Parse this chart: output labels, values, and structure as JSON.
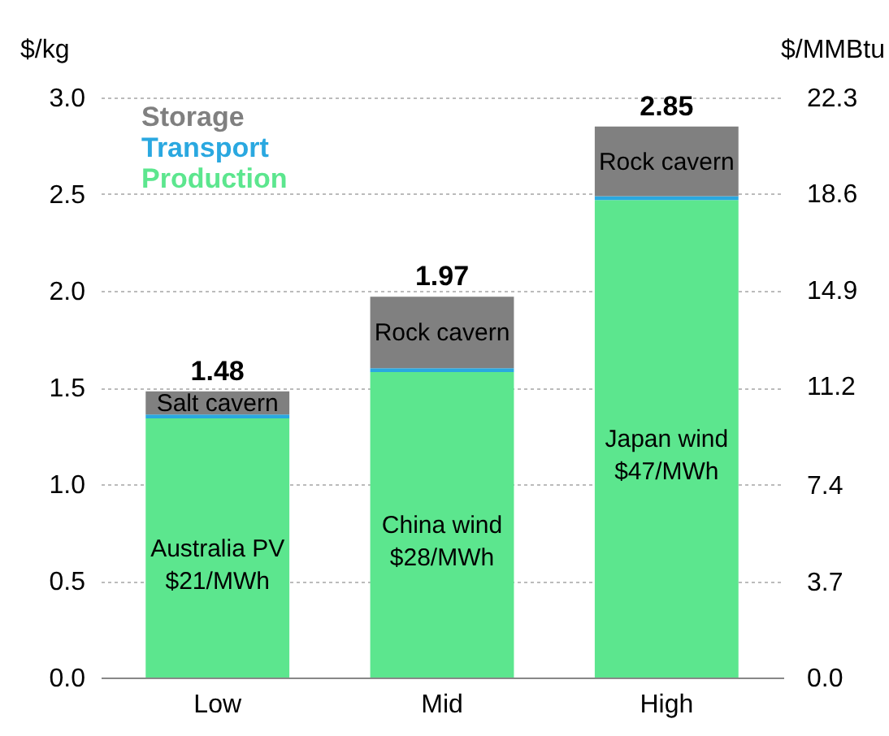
{
  "chart_data": {
    "type": "bar",
    "stacked": true,
    "ylabel": "$/kg",
    "y2label": "$/MMBtu",
    "categories": [
      "Low",
      "Mid",
      "High"
    ],
    "series": [
      {
        "name": "Production",
        "color": "#5ce68e",
        "values": [
          1.34,
          1.58,
          2.47
        ],
        "value_labels": [
          "Australia PV\n$21/MWh",
          "China wind\n$28/MWh",
          "Japan wind\n$47/MWh"
        ]
      },
      {
        "name": "Transport",
        "color": "#2aa8e0",
        "values": [
          0.02,
          0.02,
          0.02
        ]
      },
      {
        "name": "Storage",
        "color": "#808080",
        "values": [
          0.12,
          0.37,
          0.36
        ],
        "value_labels": [
          "Salt cavern",
          "Rock cavern",
          "Rock cavern"
        ]
      }
    ],
    "totals": [
      "1.48",
      "1.97",
      "2.85"
    ],
    "ylim": [
      0,
      3
    ],
    "yticks": [
      {
        "value": 0,
        "label": "0.0"
      },
      0.5,
      {
        "value": 1,
        "label": "1.0"
      },
      1.5,
      {
        "value": 2,
        "label": "2.0"
      },
      2.5,
      {
        "value": 3,
        "label": "3.0"
      }
    ],
    "y2lim": [
      0,
      22.3
    ],
    "y2ticks": [
      {
        "value": 0,
        "label": "0.0"
      },
      3.7,
      7.4,
      11.2,
      14.9,
      18.6,
      22.3
    ],
    "grid": "y",
    "legend": "top left"
  }
}
